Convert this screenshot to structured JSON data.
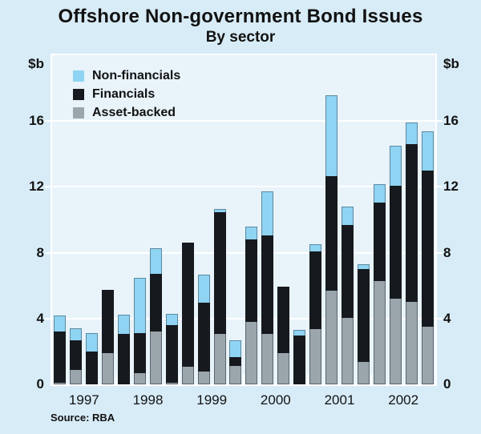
{
  "title": "Offshore Non-government Bond Issues",
  "subtitle": "By sector",
  "source": "Source: RBA",
  "axis_unit_left": "$b",
  "axis_unit_right": "$b",
  "colors": {
    "background": "#d8ecf7",
    "plot_background": "#e8f3fa",
    "gridline": "#ffffff",
    "non_financials": "#8fd4f2",
    "financials": "#16191d",
    "asset_backed": "#9aa5ac",
    "text": "#121212"
  },
  "chart_data": {
    "type": "bar",
    "stacked": true,
    "title": "Offshore Non-government Bond Issues",
    "subtitle": "By sector",
    "ylabel": "$b",
    "ylim": [
      0,
      20
    ],
    "yticks": [
      0,
      4,
      8,
      12,
      16
    ],
    "grid": "horizontal white gridlines at yticks, labels on both sides",
    "categories": [
      "1997",
      "1998",
      "1999",
      "2000",
      "2001",
      "2002"
    ],
    "bars_per_group": 4,
    "legend_position": "top-left inside plot",
    "legend_order": [
      "Non-financials",
      "Financials",
      "Asset-backed"
    ],
    "series": [
      {
        "name": "Asset-backed",
        "color": "#9aa5ac",
        "values": [
          0.1,
          0.9,
          0,
          1.9,
          0,
          0.7,
          3.2,
          0.1,
          1.05,
          0.8,
          3.05,
          1.1,
          3.8,
          3.05,
          1.9,
          0,
          3.35,
          5.7,
          4.05,
          1.35,
          6.3,
          5.2,
          5.0,
          3.5
        ]
      },
      {
        "name": "Financials",
        "color": "#16191d",
        "values": [
          3.1,
          1.8,
          2.0,
          3.85,
          3.05,
          2.4,
          3.5,
          3.5,
          7.55,
          4.15,
          7.4,
          0.55,
          5.0,
          6.0,
          4.05,
          2.95,
          4.75,
          6.95,
          5.65,
          5.65,
          4.75,
          6.85,
          9.6,
          9.5
        ]
      },
      {
        "name": "Non-financials",
        "color": "#8fd4f2",
        "values": [
          1.0,
          0.7,
          1.1,
          0,
          1.2,
          3.35,
          1.55,
          0.7,
          0,
          1.7,
          0.2,
          1.05,
          0.8,
          2.7,
          0,
          0.35,
          0.4,
          4.9,
          1.1,
          0.3,
          1.1,
          2.45,
          1.3,
          2.4
        ]
      }
    ]
  }
}
